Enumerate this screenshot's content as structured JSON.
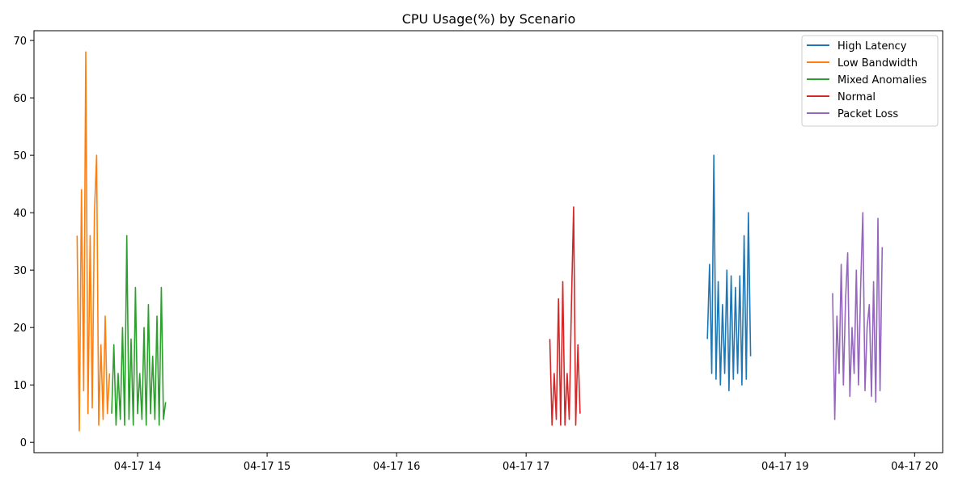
{
  "chart_data": {
    "type": "line",
    "title": "CPU Usage(%) by Scenario",
    "xlabel": "",
    "ylabel": "",
    "x_axis": "time",
    "xlim": [
      "2024-04-17 13:12",
      "2024-04-17 20:13"
    ],
    "ylim": [
      -1.8,
      71.7
    ],
    "x_ticks": [
      {
        "t": "2024-04-17 14:00",
        "label": "04-17 14"
      },
      {
        "t": "2024-04-17 15:00",
        "label": "04-17 15"
      },
      {
        "t": "2024-04-17 16:00",
        "label": "04-17 16"
      },
      {
        "t": "2024-04-17 17:00",
        "label": "04-17 17"
      },
      {
        "t": "2024-04-17 18:00",
        "label": "04-17 18"
      },
      {
        "t": "2024-04-17 19:00",
        "label": "04-17 19"
      },
      {
        "t": "2024-04-17 20:00",
        "label": "04-17 20"
      }
    ],
    "y_ticks": [
      0,
      10,
      20,
      30,
      40,
      50,
      60,
      70
    ],
    "grid": false,
    "legend_position": "top-right",
    "series": [
      {
        "name": "High Latency",
        "color": "#1f77b4",
        "x": [
          "2024-04-17 18:24",
          "2024-04-17 18:25",
          "2024-04-17 18:26",
          "2024-04-17 18:27",
          "2024-04-17 18:28",
          "2024-04-17 18:29",
          "2024-04-17 18:30",
          "2024-04-17 18:31",
          "2024-04-17 18:32",
          "2024-04-17 18:33",
          "2024-04-17 18:34",
          "2024-04-17 18:35",
          "2024-04-17 18:36",
          "2024-04-17 18:37",
          "2024-04-17 18:38",
          "2024-04-17 18:39",
          "2024-04-17 18:40",
          "2024-04-17 18:41",
          "2024-04-17 18:42",
          "2024-04-17 18:43",
          "2024-04-17 18:44"
        ],
        "y": [
          18,
          31,
          12,
          50,
          11,
          28,
          10,
          24,
          12,
          30,
          9,
          29,
          11,
          27,
          12,
          29,
          10,
          36,
          11,
          40,
          15
        ]
      },
      {
        "name": "Low Bandwidth",
        "color": "#ff7f0e",
        "x": [
          "2024-04-17 13:32",
          "2024-04-17 13:33",
          "2024-04-17 13:34",
          "2024-04-17 13:35",
          "2024-04-17 13:36",
          "2024-04-17 13:37",
          "2024-04-17 13:38",
          "2024-04-17 13:39",
          "2024-04-17 13:40",
          "2024-04-17 13:41",
          "2024-04-17 13:42",
          "2024-04-17 13:43",
          "2024-04-17 13:44",
          "2024-04-17 13:45",
          "2024-04-17 13:46",
          "2024-04-17 13:47"
        ],
        "y": [
          36,
          2,
          44,
          9,
          68,
          5,
          36,
          6,
          40,
          50,
          3,
          17,
          4,
          22,
          5,
          12
        ]
      },
      {
        "name": "Mixed Anomalies",
        "color": "#2ca02c",
        "x": [
          "2024-04-17 13:48",
          "2024-04-17 13:49",
          "2024-04-17 13:50",
          "2024-04-17 13:51",
          "2024-04-17 13:52",
          "2024-04-17 13:53",
          "2024-04-17 13:54",
          "2024-04-17 13:55",
          "2024-04-17 13:56",
          "2024-04-17 13:57",
          "2024-04-17 13:58",
          "2024-04-17 13:59",
          "2024-04-17 14:00",
          "2024-04-17 14:01",
          "2024-04-17 14:02",
          "2024-04-17 14:03",
          "2024-04-17 14:04",
          "2024-04-17 14:05",
          "2024-04-17 14:06",
          "2024-04-17 14:07",
          "2024-04-17 14:08",
          "2024-04-17 14:09",
          "2024-04-17 14:10",
          "2024-04-17 14:11",
          "2024-04-17 14:12",
          "2024-04-17 14:13"
        ],
        "y": [
          5,
          17,
          3,
          12,
          4,
          20,
          3,
          36,
          4,
          18,
          3,
          27,
          5,
          12,
          4,
          20,
          3,
          24,
          5,
          15,
          4,
          22,
          3,
          27,
          4,
          7
        ]
      },
      {
        "name": "Normal",
        "color": "#d62728",
        "x": [
          "2024-04-17 17:11",
          "2024-04-17 17:12",
          "2024-04-17 17:13",
          "2024-04-17 17:14",
          "2024-04-17 17:15",
          "2024-04-17 17:16",
          "2024-04-17 17:17",
          "2024-04-17 17:18",
          "2024-04-17 17:19",
          "2024-04-17 17:20",
          "2024-04-17 17:21",
          "2024-04-17 17:22",
          "2024-04-17 17:23",
          "2024-04-17 17:24",
          "2024-04-17 17:25"
        ],
        "y": [
          18,
          3,
          12,
          4,
          25,
          3,
          28,
          3,
          12,
          4,
          24,
          41,
          3,
          17,
          5
        ]
      },
      {
        "name": "Packet Loss",
        "color": "#9467bd",
        "x": [
          "2024-04-17 19:22",
          "2024-04-17 19:23",
          "2024-04-17 19:24",
          "2024-04-17 19:25",
          "2024-04-17 19:26",
          "2024-04-17 19:27",
          "2024-04-17 19:28",
          "2024-04-17 19:29",
          "2024-04-17 19:30",
          "2024-04-17 19:31",
          "2024-04-17 19:32",
          "2024-04-17 19:33",
          "2024-04-17 19:34",
          "2024-04-17 19:35",
          "2024-04-17 19:36",
          "2024-04-17 19:37",
          "2024-04-17 19:38",
          "2024-04-17 19:39",
          "2024-04-17 19:40",
          "2024-04-17 19:41",
          "2024-04-17 19:42",
          "2024-04-17 19:43",
          "2024-04-17 19:44",
          "2024-04-17 19:45"
        ],
        "y": [
          26,
          4,
          22,
          12,
          31,
          10,
          25,
          33,
          8,
          20,
          12,
          30,
          10,
          27,
          40,
          9,
          20,
          24,
          8,
          28,
          7,
          39,
          9,
          34
        ]
      }
    ]
  }
}
